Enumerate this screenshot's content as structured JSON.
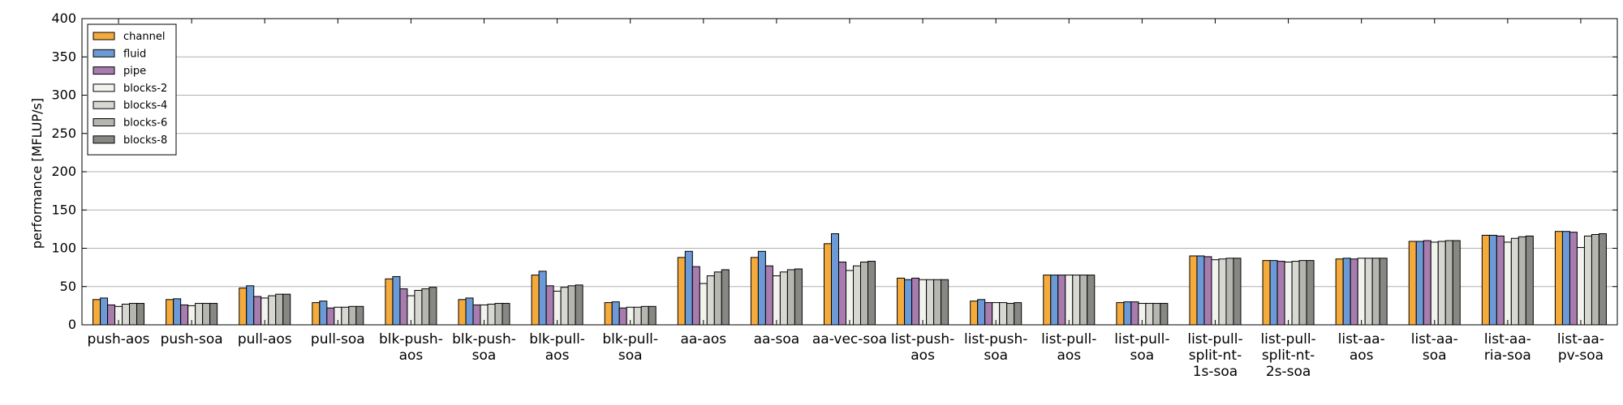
{
  "chart_data": {
    "type": "bar",
    "ylabel": "performance [MFLUP/s]",
    "xlabel": "",
    "title": "",
    "ylim": [
      0,
      400
    ],
    "yticks": [
      0,
      50,
      100,
      150,
      200,
      250,
      300,
      350,
      400
    ],
    "grid": "horizontal",
    "legend_position": "top-left",
    "categories": [
      "push-aos",
      "push-soa",
      "pull-aos",
      "pull-soa",
      "blk-push-aos",
      "blk-push-soa",
      "blk-pull-aos",
      "blk-pull-soa",
      "aa-aos",
      "aa-soa",
      "aa-vec-soa",
      "list-push-aos",
      "list-push-soa",
      "list-pull-aos",
      "list-pull-soa",
      "list-pull-split-nt-1s-soa",
      "list-pull-split-nt-2s-soa",
      "list-aa-aos",
      "list-aa-soa",
      "list-aa-ria-soa",
      "list-aa-pv-soa"
    ],
    "category_labels": [
      [
        "push-aos"
      ],
      [
        "push-soa"
      ],
      [
        "pull-aos"
      ],
      [
        "pull-soa"
      ],
      [
        "blk-push-",
        "aos"
      ],
      [
        "blk-push-",
        "soa"
      ],
      [
        "blk-pull-",
        "aos"
      ],
      [
        "blk-pull-",
        "soa"
      ],
      [
        "aa-aos"
      ],
      [
        "aa-soa"
      ],
      [
        "aa-vec-soa"
      ],
      [
        "list-push-",
        "aos"
      ],
      [
        "list-push-",
        "soa"
      ],
      [
        "list-pull-",
        "aos"
      ],
      [
        "list-pull-",
        "soa"
      ],
      [
        "list-pull-",
        "split-nt-",
        "1s-soa"
      ],
      [
        "list-pull-",
        "split-nt-",
        "2s-soa"
      ],
      [
        "list-aa-",
        "aos"
      ],
      [
        "list-aa-",
        "soa"
      ],
      [
        "list-aa-",
        "ria-soa"
      ],
      [
        "list-aa-",
        "pv-soa"
      ]
    ],
    "series": [
      {
        "name": "channel",
        "color": "#f5aa3c",
        "values": [
          33,
          33,
          48,
          29,
          60,
          33,
          65,
          29,
          88,
          88,
          106,
          61,
          31,
          65,
          29,
          90,
          84,
          86,
          109,
          117,
          122
        ]
      },
      {
        "name": "fluid",
        "color": "#6b9ad6",
        "values": [
          35,
          34,
          51,
          31,
          63,
          35,
          70,
          30,
          96,
          96,
          119,
          59,
          33,
          65,
          30,
          90,
          84,
          87,
          109,
          117,
          122
        ]
      },
      {
        "name": "pipe",
        "color": "#a87cae",
        "values": [
          26,
          26,
          37,
          22,
          47,
          26,
          51,
          22,
          76,
          77,
          82,
          61,
          29,
          65,
          30,
          89,
          83,
          86,
          110,
          116,
          121
        ]
      },
      {
        "name": "blocks-2",
        "color": "#f2f2ef",
        "values": [
          24,
          25,
          35,
          23,
          38,
          26,
          44,
          23,
          54,
          64,
          71,
          59,
          29,
          65,
          28,
          85,
          82,
          87,
          108,
          108,
          101
        ]
      },
      {
        "name": "blocks-4",
        "color": "#d8d8d2",
        "values": [
          27,
          28,
          38,
          23,
          45,
          27,
          49,
          23,
          64,
          69,
          77,
          59,
          29,
          65,
          28,
          86,
          83,
          87,
          109,
          113,
          116
        ]
      },
      {
        "name": "blocks-6",
        "color": "#b6b6b0",
        "values": [
          28,
          28,
          40,
          24,
          47,
          28,
          51,
          24,
          69,
          72,
          82,
          59,
          28,
          65,
          28,
          87,
          84,
          87,
          110,
          115,
          118
        ]
      },
      {
        "name": "blocks-8",
        "color": "#878783",
        "values": [
          28,
          28,
          40,
          24,
          49,
          28,
          52,
          24,
          72,
          73,
          83,
          59,
          29,
          65,
          28,
          87,
          84,
          87,
          110,
          116,
          119
        ]
      }
    ]
  }
}
